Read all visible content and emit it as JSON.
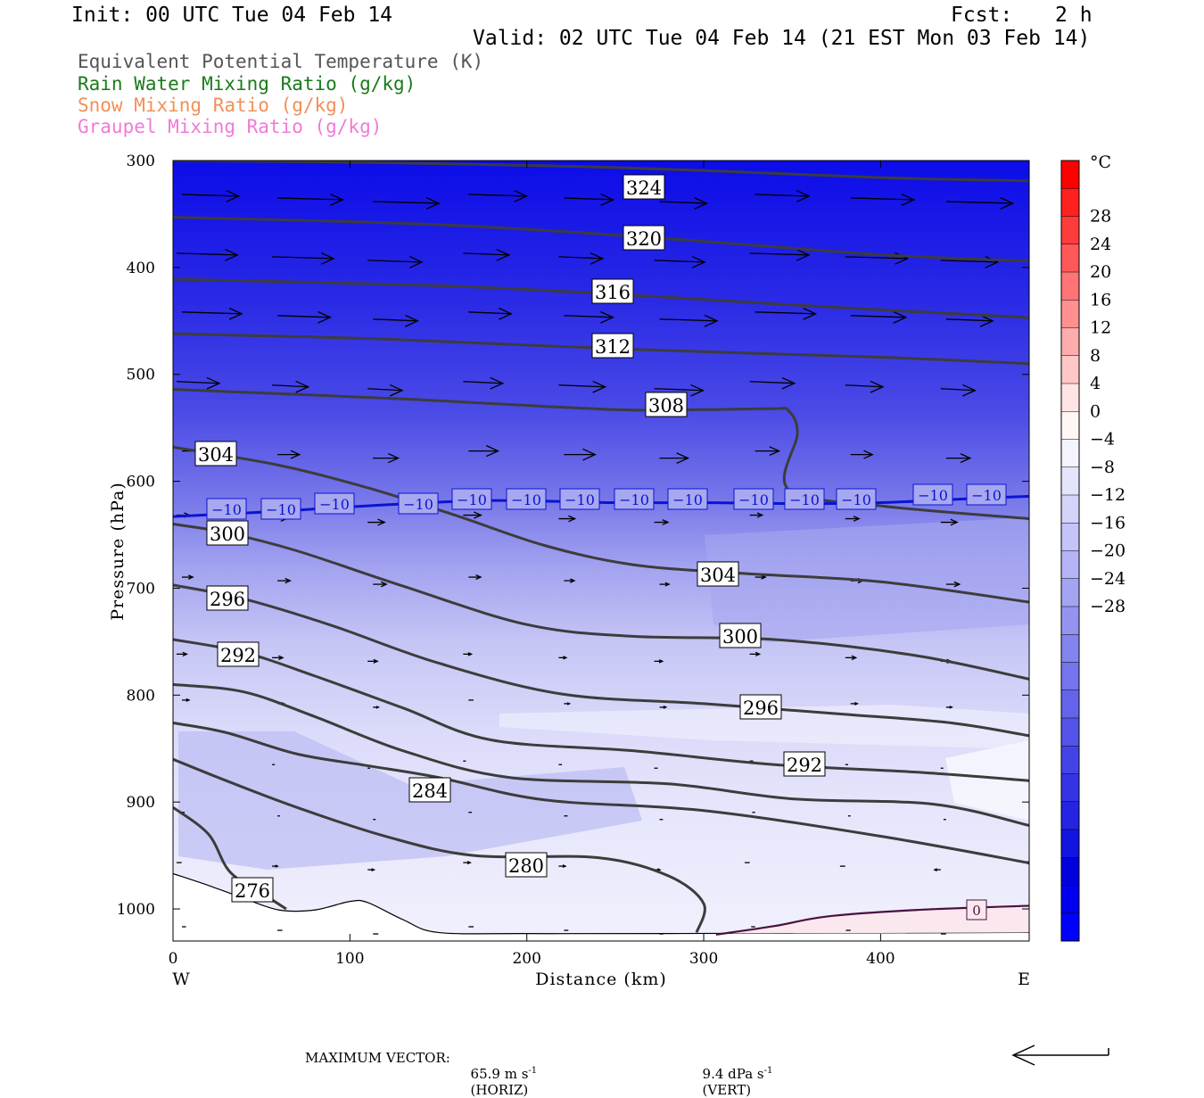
{
  "header": {
    "init": "Init: 00 UTC Tue 04 Feb 14",
    "fcst_label": "Fcst:",
    "fcst_value": "2 h",
    "valid": "Valid: 02 UTC Tue 04 Feb 14 (21 EST Mon 03 Feb 14)"
  },
  "fields": [
    {
      "label": "Equivalent Potential Temperature (K)",
      "color": "#555555"
    },
    {
      "label": "Rain Water Mixing Ratio (g/kg)",
      "color": "#1a7a1a"
    },
    {
      "label": "Snow Mixing Ratio (g/kg)",
      "color": "#f0905a"
    },
    {
      "label": "Graupel Mixing Ratio (g/kg)",
      "color": "#f07ad8"
    }
  ],
  "footer": {
    "max_vector_label": "MAXIMUM VECTOR:",
    "horiz_value": "65.9 m s",
    "horiz_exp": "-1",
    "horiz_tag": "(HORIZ)",
    "vert_value": "9.4 dPa s",
    "vert_exp": "-1",
    "vert_tag": "(VERT)"
  },
  "chart_data": {
    "type": "cross-section",
    "xlabel": "Distance (km)",
    "ylabel": "Pressure (hPa)",
    "xlim": [
      0,
      484
    ],
    "ylim": [
      1030,
      300
    ],
    "x_ticks": [
      0,
      100,
      200,
      300,
      400
    ],
    "y_ticks": [
      300,
      400,
      500,
      600,
      700,
      800,
      900,
      1000
    ],
    "x_end_labels": {
      "left": "W",
      "right": "E"
    },
    "colorbar": {
      "unit": "°C",
      "ticks": [
        "28",
        "24",
        "20",
        "16",
        "12",
        "8",
        "4",
        "0",
        "−4",
        "−8",
        "−12",
        "−16",
        "−20",
        "−24",
        "−28"
      ],
      "colors": [
        "#ff0000",
        "#ff2020",
        "#ff3c3c",
        "#ff5858",
        "#ff7474",
        "#ff9090",
        "#ffacac",
        "#ffc8c8",
        "#ffe4e4",
        "#fff6f6",
        "#f4f4fe",
        "#e4e4fc",
        "#d4d4fa",
        "#c4c4f8",
        "#b4b4f6",
        "#a4a4f3",
        "#9494f0",
        "#8484ee",
        "#7474ec",
        "#6464ea",
        "#5454e8",
        "#4444e6",
        "#3434e4",
        "#2424e2",
        "#1414e0",
        "#0000dd",
        "#0000ee",
        "#0000ff"
      ]
    },
    "theta_e_contours": [
      {
        "label": "324",
        "points": [
          [
            0,
            300
          ],
          [
            120,
            302
          ],
          [
            260,
            307
          ],
          [
            400,
            316
          ],
          [
            484,
            319
          ]
        ]
      },
      {
        "label": "320",
        "points": [
          [
            0,
            353
          ],
          [
            150,
            360
          ],
          [
            270,
            372
          ],
          [
            400,
            388
          ],
          [
            484,
            394
          ]
        ]
      },
      {
        "label": "316",
        "points": [
          [
            0,
            411
          ],
          [
            150,
            417
          ],
          [
            250,
            425
          ],
          [
            350,
            435
          ],
          [
            484,
            447
          ]
        ]
      },
      {
        "label": "312",
        "points": [
          [
            0,
            462
          ],
          [
            120,
            467
          ],
          [
            250,
            476
          ],
          [
            400,
            484
          ],
          [
            484,
            490
          ]
        ]
      },
      {
        "label": "308",
        "points": [
          [
            0,
            514
          ],
          [
            130,
            523
          ],
          [
            250,
            533
          ],
          [
            300,
            533
          ],
          [
            340,
            532
          ],
          [
            348,
            534
          ],
          [
            353,
            555
          ],
          [
            348,
            608
          ],
          [
            400,
            623
          ],
          [
            484,
            635
          ]
        ]
      },
      {
        "label": "304",
        "points": [
          [
            0,
            568
          ],
          [
            60,
            585
          ],
          [
            110,
            606
          ],
          [
            160,
            632
          ],
          [
            210,
            660
          ],
          [
            260,
            678
          ],
          [
            320,
            686
          ],
          [
            400,
            694
          ],
          [
            484,
            713
          ]
        ]
      },
      {
        "label": "300",
        "points": [
          [
            0,
            640
          ],
          [
            30,
            648
          ],
          [
            70,
            665
          ],
          [
            130,
            698
          ],
          [
            200,
            734
          ],
          [
            260,
            745
          ],
          [
            340,
            748
          ],
          [
            420,
            763
          ],
          [
            484,
            785
          ]
        ]
      },
      {
        "label": "296",
        "points": [
          [
            0,
            697
          ],
          [
            40,
            710
          ],
          [
            90,
            735
          ],
          [
            150,
            770
          ],
          [
            220,
            799
          ],
          [
            300,
            808
          ],
          [
            380,
            818
          ],
          [
            440,
            826
          ],
          [
            484,
            838
          ]
        ]
      },
      {
        "label": "292",
        "points": [
          [
            0,
            748
          ],
          [
            40,
            760
          ],
          [
            80,
            782
          ],
          [
            130,
            812
          ],
          [
            180,
            842
          ],
          [
            260,
            852
          ],
          [
            340,
            865
          ],
          [
            420,
            872
          ],
          [
            484,
            880
          ]
        ]
      },
      {
        "label": "",
        "points": [
          [
            0,
            790
          ],
          [
            40,
            797
          ],
          [
            80,
            820
          ],
          [
            130,
            852
          ],
          [
            190,
            877
          ],
          [
            280,
            883
          ],
          [
            350,
            897
          ],
          [
            430,
            902
          ],
          [
            484,
            922
          ]
        ]
      },
      {
        "label": "284",
        "points": [
          [
            0,
            826
          ],
          [
            30,
            835
          ],
          [
            70,
            855
          ],
          [
            110,
            866
          ],
          [
            150,
            877
          ],
          [
            210,
            898
          ],
          [
            300,
            908
          ],
          [
            400,
            932
          ],
          [
            484,
            957
          ]
        ]
      },
      {
        "label": "280",
        "points": [
          [
            0,
            860
          ],
          [
            30,
            880
          ],
          [
            70,
            905
          ],
          [
            120,
            932
          ],
          [
            170,
            950
          ],
          [
            240,
            952
          ],
          [
            280,
            969
          ],
          [
            300,
            995
          ],
          [
            296,
            1022
          ]
        ]
      },
      {
        "label": "276",
        "points": [
          [
            0,
            905
          ],
          [
            20,
            930
          ],
          [
            32,
            965
          ],
          [
            50,
            985
          ],
          [
            64,
            1000
          ]
        ]
      }
    ],
    "isotherm_labels": [
      "−10",
      "−10",
      "−10",
      "−10",
      "−10",
      "−10",
      "−10",
      "−10",
      "−10",
      "−10",
      "−10",
      "−10",
      "−10",
      "−10",
      "−10"
    ],
    "isotherm_minus10": [
      [
        0,
        633
      ],
      [
        60,
        628
      ],
      [
        120,
        622
      ],
      [
        180,
        618
      ],
      [
        250,
        620
      ],
      [
        300,
        620
      ],
      [
        360,
        621
      ],
      [
        400,
        620
      ],
      [
        440,
        617
      ],
      [
        484,
        614
      ]
    ],
    "isotherm_zero": {
      "label": "0",
      "points": [
        [
          307,
          1024
        ],
        [
          340,
          1016
        ],
        [
          370,
          1007
        ],
        [
          420,
          1001
        ],
        [
          484,
          997
        ]
      ]
    },
    "terrain": [
      [
        0,
        967
      ],
      [
        20,
        978
      ],
      [
        40,
        990
      ],
      [
        60,
        1001
      ],
      [
        80,
        1001
      ],
      [
        100,
        993
      ],
      [
        110,
        994
      ],
      [
        130,
        1010
      ],
      [
        150,
        1022
      ],
      [
        200,
        1023
      ],
      [
        280,
        1023
      ],
      [
        484,
        1022
      ]
    ],
    "wind_arrows_rows_hPa": [
      335,
      390,
      445,
      510,
      575,
      635,
      693,
      765,
      808,
      865,
      913,
      960,
      1020
    ]
  }
}
